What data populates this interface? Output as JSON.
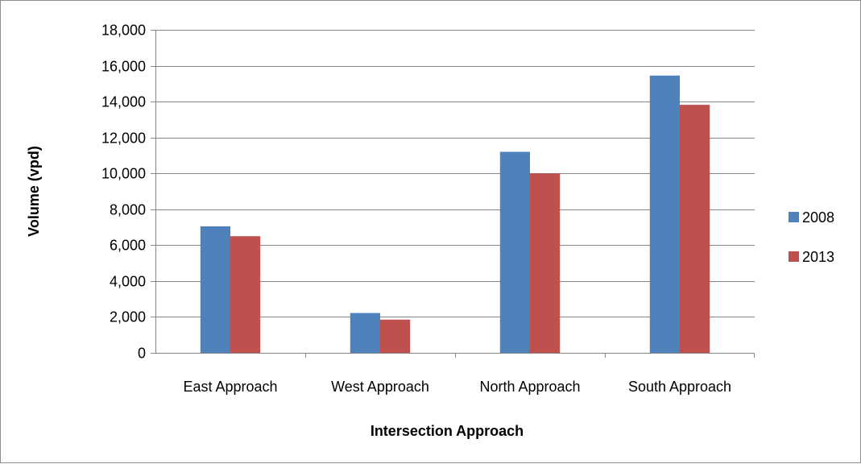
{
  "chart_data": {
    "type": "bar",
    "title": "",
    "xlabel": "Intersection Approach",
    "ylabel": "Volume (vpd)",
    "categories": [
      "East Approach",
      "West Approach",
      "North Approach",
      "South Approach"
    ],
    "series": [
      {
        "name": "2008",
        "color": "#4F81BD",
        "values": [
          7050,
          2220,
          11200,
          15450
        ]
      },
      {
        "name": "2013",
        "color": "#C0504D",
        "values": [
          6500,
          1850,
          10000,
          13820
        ]
      }
    ],
    "ylim": [
      0,
      18000
    ],
    "yticks": [
      0,
      2000,
      4000,
      6000,
      8000,
      10000,
      12000,
      14000,
      16000,
      18000
    ],
    "ytick_labels": [
      "0",
      "2,000",
      "4,000",
      "6,000",
      "8,000",
      "10,000",
      "12,000",
      "14,000",
      "16,000",
      "18,000"
    ],
    "grid": "horizontal",
    "legend_position": "right"
  }
}
